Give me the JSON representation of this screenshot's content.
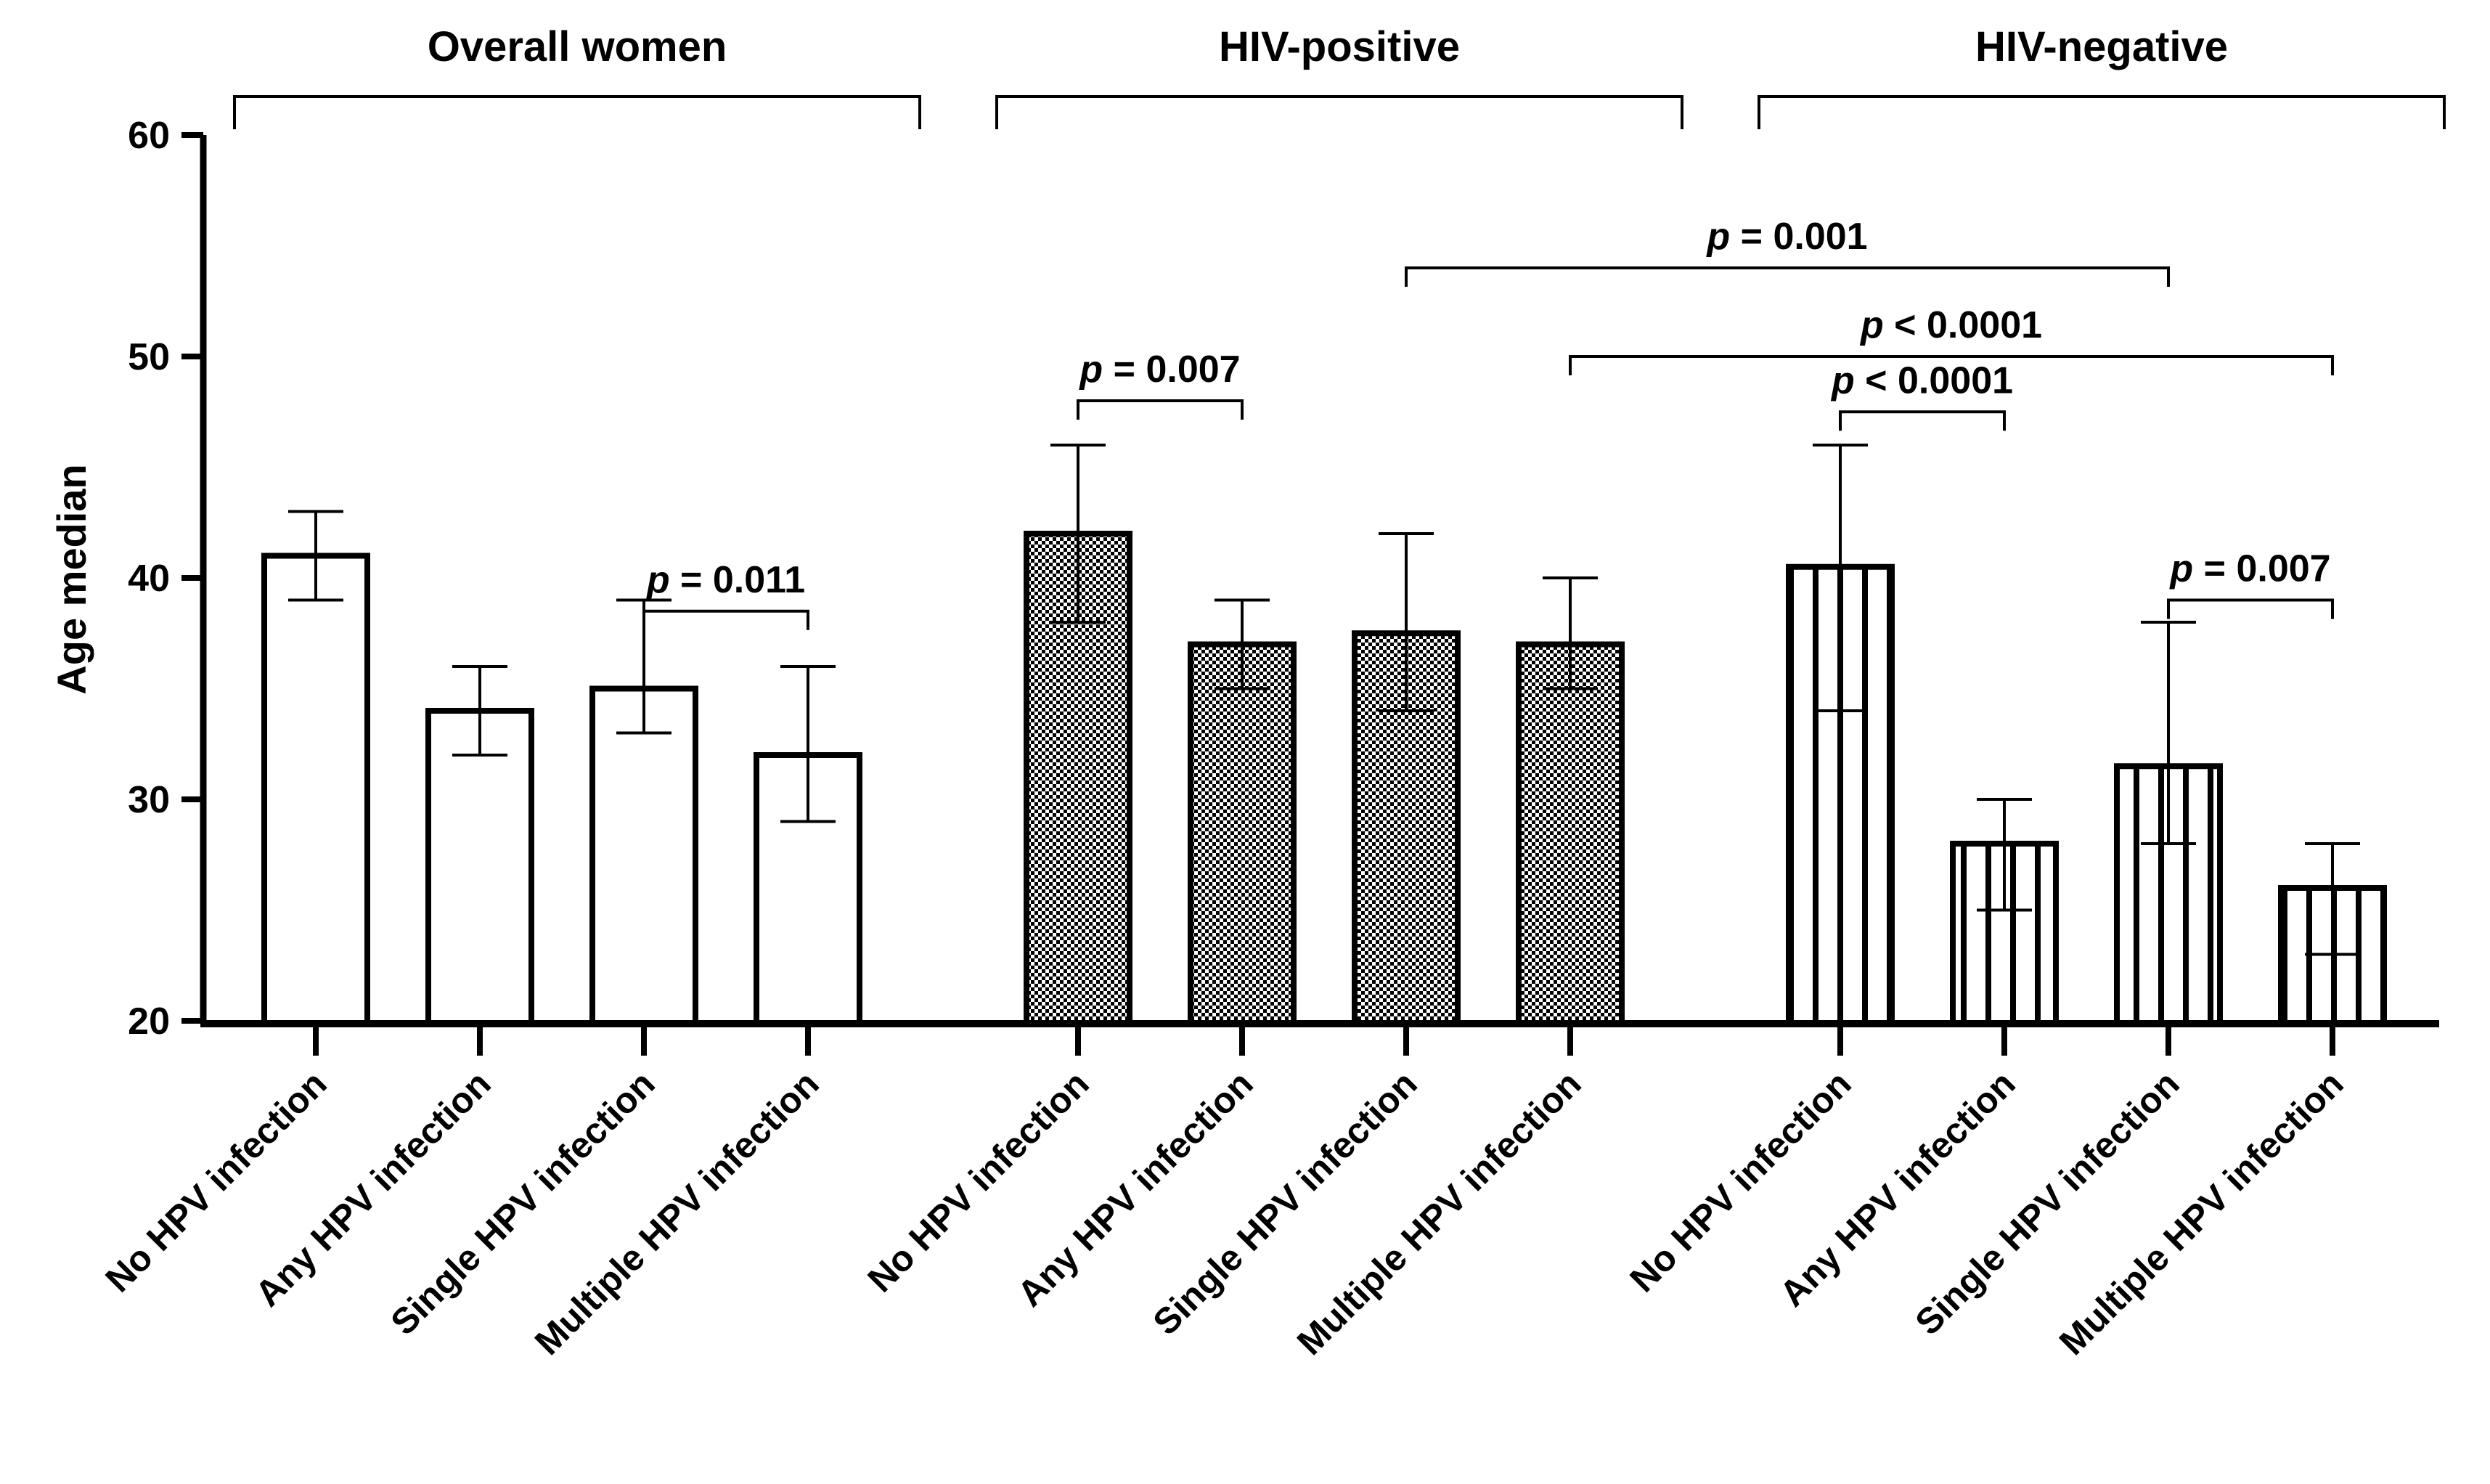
{
  "chart_data": {
    "type": "bar",
    "title": "",
    "xlabel": "",
    "ylabel": "Age median",
    "ylim": [
      18,
      60
    ],
    "yticks": [
      20,
      30,
      40,
      50,
      60
    ],
    "grid": false,
    "groups": [
      {
        "name": "Overall women",
        "pattern": "plain",
        "categories": [
          "No HPV infection",
          "Any HPV infection",
          "Single HPV infection",
          "Multiple HPV infection"
        ],
        "values": [
          41,
          34,
          35,
          32
        ],
        "err_low": [
          39,
          32,
          33,
          29
        ],
        "err_high": [
          43,
          36,
          39,
          36
        ]
      },
      {
        "name": "HIV-positive",
        "pattern": "checkered",
        "categories": [
          "No HPV infection",
          "Any HPV infection",
          "Single HPV infection",
          "Multiple HPV infection"
        ],
        "values": [
          42,
          37,
          37.5,
          37
        ],
        "err_low": [
          38,
          35,
          34,
          35
        ],
        "err_high": [
          46,
          39,
          42,
          40
        ]
      },
      {
        "name": "HIV-negative",
        "pattern": "vertical-stripes",
        "categories": [
          "No HPV infection",
          "Any HPV infection",
          "Single HPV infection",
          "Multiple HPV infection"
        ],
        "values": [
          40.5,
          28,
          31.5,
          26
        ],
        "err_low": [
          34,
          25,
          28,
          23
        ],
        "err_high": [
          46,
          30,
          38,
          28
        ]
      }
    ],
    "annotations": [
      {
        "prefix": "p",
        "text": " = 0.011",
        "from_bar": 2,
        "to_bar": 3,
        "level": 38.5
      },
      {
        "prefix": "p",
        "text": " = 0.007",
        "from_bar": 4,
        "to_bar": 5,
        "level": 48
      },
      {
        "prefix": "p",
        "text": " = 0.001",
        "from_bar": 6,
        "to_bar": 10,
        "level": 54
      },
      {
        "prefix": "p",
        "text": " < 0.0001",
        "from_bar": 7,
        "to_bar": 11,
        "level": 50
      },
      {
        "prefix": "p",
        "text": " < 0.0001",
        "from_bar": 8,
        "to_bar": 9,
        "level": 47.5
      },
      {
        "prefix": "p",
        "text": " = 0.007",
        "from_bar": 10,
        "to_bar": 11,
        "level": 39
      }
    ]
  }
}
